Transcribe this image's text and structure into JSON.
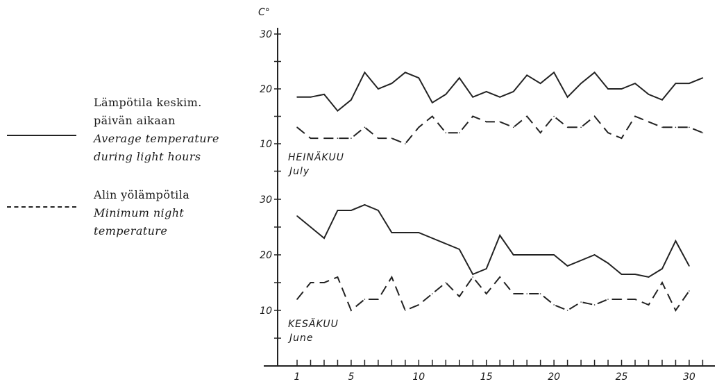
{
  "legend": {
    "avg_fi_1": "Lämpötila keskim.",
    "avg_fi_2": "päivän aikaan",
    "avg_en_1": "Average temperature",
    "avg_en_2": "during light hours",
    "min_fi": "Alin yölämpötila",
    "min_en_1": "Minimum night",
    "min_en_2": "temperature"
  },
  "chart_data": {
    "type": "line",
    "ylabel": "C°",
    "x": [
      1,
      2,
      3,
      4,
      5,
      6,
      7,
      8,
      9,
      10,
      11,
      12,
      13,
      14,
      15,
      16,
      17,
      18,
      19,
      20,
      21,
      22,
      23,
      24,
      25,
      26,
      27,
      28,
      29,
      30,
      31
    ],
    "xticks_labeled": [
      1,
      5,
      10,
      15,
      20,
      25,
      30
    ],
    "panels": [
      {
        "month_fi": "HEINÄKUU",
        "month_en": "July",
        "yticks": [
          10,
          20,
          30
        ],
        "ylim": [
          5,
          32
        ],
        "series": [
          {
            "style": "solid",
            "values": [
              18.5,
              18.5,
              19,
              16,
              18,
              23,
              20,
              21,
              23,
              22,
              17.5,
              19,
              22,
              18.5,
              19.5,
              18.5,
              19.5,
              22.5,
              21,
              23,
              18.5,
              21,
              23,
              20,
              20,
              21,
              19,
              18,
              21,
              21,
              22
            ]
          },
          {
            "style": "dashed",
            "values": [
              13,
              11,
              11,
              11,
              11,
              13,
              11,
              11,
              10,
              13,
              15,
              12,
              12,
              15,
              14,
              14,
              13,
              15,
              12,
              15,
              13,
              13,
              15,
              12,
              11,
              15,
              14,
              13,
              13,
              13,
              12
            ]
          }
        ]
      },
      {
        "month_fi": "KESÄKUU",
        "month_en": "June",
        "yticks": [
          10,
          20,
          30
        ],
        "ylim": [
          0,
          32
        ],
        "series": [
          {
            "style": "solid",
            "values": [
              27,
              25,
              23,
              28,
              28,
              29,
              28,
              24,
              24,
              24,
              23,
              22,
              21,
              16.5,
              17.5,
              23.5,
              20,
              20,
              20,
              20,
              18,
              19,
              20,
              18.5,
              16.5,
              16.5,
              16,
              17.5,
              22.5,
              18
            ]
          },
          {
            "style": "dashed",
            "values": [
              12,
              15,
              15,
              16,
              10,
              12,
              12,
              16,
              10,
              11,
              13,
              15,
              12.5,
              16,
              13,
              16,
              13,
              13,
              13,
              11,
              10,
              11.5,
              11,
              12,
              12,
              12,
              11,
              15,
              10,
              13.5
            ]
          }
        ]
      }
    ]
  }
}
